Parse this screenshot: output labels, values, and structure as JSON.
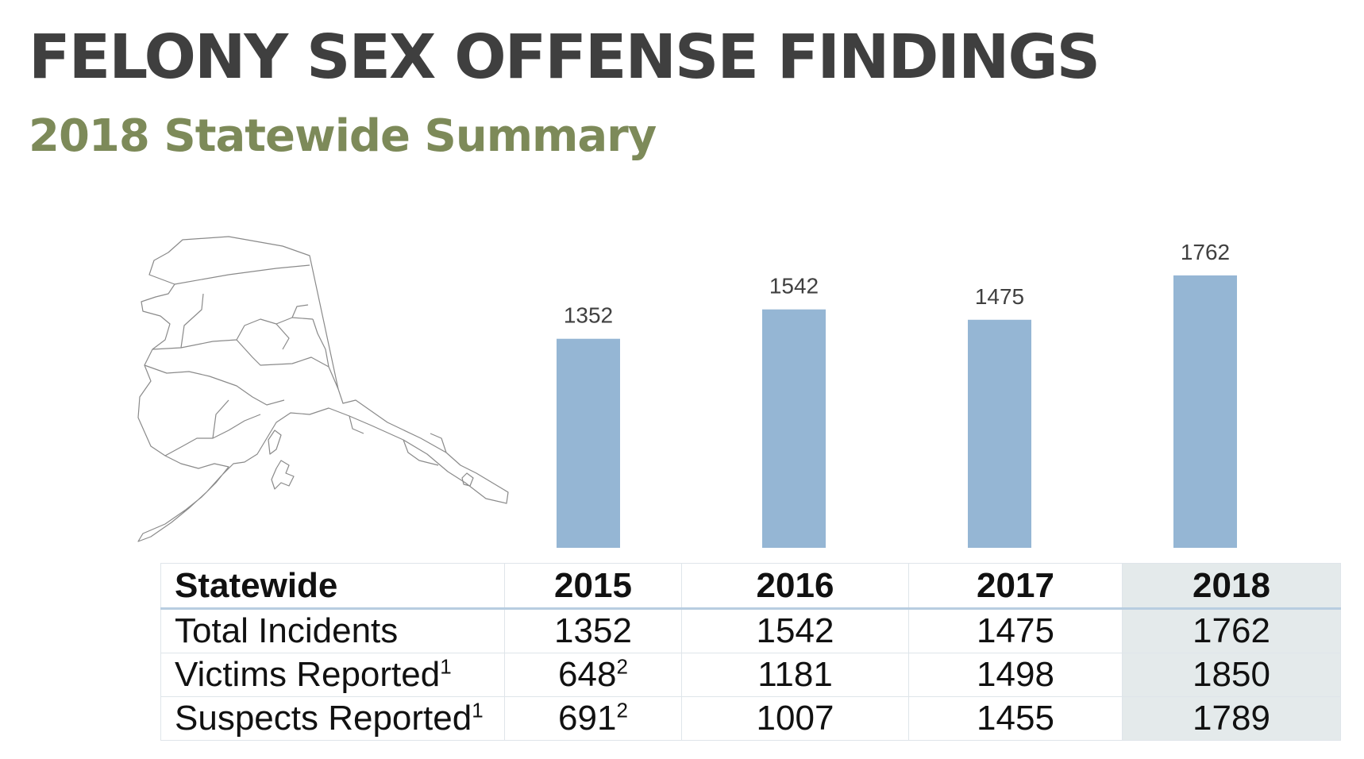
{
  "header": {
    "title": "FELONY SEX OFFENSE FINDINGS",
    "subtitle": "2018 Statewide Summary"
  },
  "colors": {
    "title": "#3f3f3f",
    "subtitle": "#7d8a59",
    "bar": "#95b6d4",
    "highlight_column": "#e4eaeb"
  },
  "map": {
    "icon": "alaska-map-outline"
  },
  "chart_data": {
    "type": "bar",
    "categories": [
      "2015",
      "2016",
      "2017",
      "2018"
    ],
    "values": [
      1352,
      1542,
      1475,
      1762
    ],
    "data_labels": [
      "1352",
      "1542",
      "1475",
      "1762"
    ],
    "title": "",
    "xlabel": "",
    "ylabel": "",
    "ylim": [
      0,
      1900
    ],
    "grid": false,
    "legend": "none"
  },
  "table": {
    "columns": [
      "Statewide",
      "2015",
      "2016",
      "2017",
      "2018"
    ],
    "rows": [
      {
        "label": "Total Incidents",
        "label_sup": "",
        "cells": [
          {
            "v": "1352",
            "sup": ""
          },
          {
            "v": "1542",
            "sup": ""
          },
          {
            "v": "1475",
            "sup": ""
          },
          {
            "v": "1762",
            "sup": ""
          }
        ]
      },
      {
        "label": "Victims Reported",
        "label_sup": "1",
        "cells": [
          {
            "v": "648",
            "sup": "2"
          },
          {
            "v": "1181",
            "sup": ""
          },
          {
            "v": "1498",
            "sup": ""
          },
          {
            "v": "1850",
            "sup": ""
          }
        ]
      },
      {
        "label": "Suspects Reported",
        "label_sup": "1",
        "cells": [
          {
            "v": "691",
            "sup": "2"
          },
          {
            "v": "1007",
            "sup": ""
          },
          {
            "v": "1455",
            "sup": ""
          },
          {
            "v": "1789",
            "sup": ""
          }
        ]
      }
    ]
  }
}
